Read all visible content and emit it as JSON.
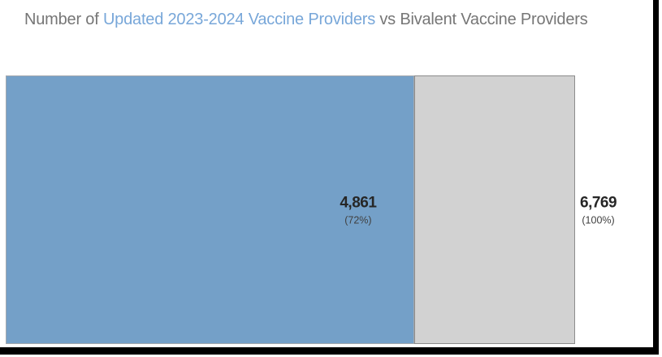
{
  "title": {
    "prefix": "Number of ",
    "highlight": "Updated 2023-2024 Vaccine Providers",
    "suffix": " vs Bivalent Vaccine Providers"
  },
  "chart_data": {
    "type": "bar",
    "orientation": "horizontal",
    "title": "Number of Updated 2023-2024 Vaccine Providers vs Bivalent Vaccine Providers",
    "legend": "none",
    "grid": false,
    "axes_visible": false,
    "xlim": [
      0,
      6769
    ],
    "series": [
      {
        "name": "Updated 2023-2024 Vaccine Providers",
        "value": 4861,
        "percent": 72,
        "label": "4,861",
        "percent_label": "(72%)",
        "color": "#74a0c8"
      },
      {
        "name": "Bivalent Vaccine Providers (remainder)",
        "value": 1908,
        "percent": 28,
        "label": "",
        "percent_label": "",
        "color": "#d2d2d2"
      }
    ],
    "total": {
      "name": "Bivalent Vaccine Providers (total)",
      "value": 6769,
      "percent": 100,
      "label": "6,769",
      "percent_label": "(100%)"
    }
  },
  "colors": {
    "bar_blue": "#74a0c8",
    "bar_gray": "#d2d2d2",
    "title_gray": "#767676",
    "title_blue": "#78a7d9",
    "label_dark": "#262626",
    "frame_black": "#000000"
  }
}
